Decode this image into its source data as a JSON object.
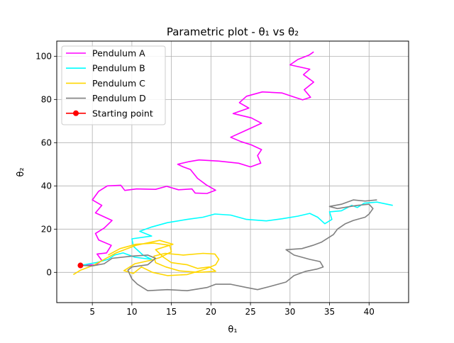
{
  "chart_data": {
    "type": "line",
    "title": "Parametric plot - θ₁ vs θ₂",
    "xlabel": "θ₁",
    "ylabel": "θ₂",
    "xlim": [
      0.5,
      45
    ],
    "ylim": [
      -14,
      107
    ],
    "xticks": [
      5,
      10,
      15,
      20,
      25,
      30,
      35,
      40
    ],
    "yticks": [
      0,
      20,
      40,
      60,
      80,
      100
    ],
    "grid": true,
    "legend_position": "top-left",
    "series": [
      {
        "name": "Pendulum A",
        "color": "#ff00ff",
        "points": [
          [
            3.5,
            3.2
          ],
          [
            5.5,
            3.5
          ],
          [
            6.2,
            5.5
          ],
          [
            5.6,
            8.5
          ],
          [
            6.8,
            9.0
          ],
          [
            7.4,
            12.5
          ],
          [
            5.8,
            15.0
          ],
          [
            5.4,
            18.0
          ],
          [
            6.5,
            20.5
          ],
          [
            7.5,
            24.0
          ],
          [
            5.4,
            27.5
          ],
          [
            6.2,
            31.0
          ],
          [
            5.0,
            33.5
          ],
          [
            5.8,
            37.5
          ],
          [
            6.9,
            40.0
          ],
          [
            8.6,
            40.3
          ],
          [
            9.1,
            37.9
          ],
          [
            10.6,
            38.6
          ],
          [
            13.0,
            38.4
          ],
          [
            14.4,
            39.8
          ],
          [
            15.9,
            38.2
          ],
          [
            17.6,
            38.6
          ],
          [
            18.0,
            36.7
          ],
          [
            19.5,
            36.5
          ],
          [
            20.6,
            38.0
          ],
          [
            19.4,
            40.5
          ],
          [
            18.3,
            43.5
          ],
          [
            17.4,
            47.6
          ],
          [
            16.5,
            48.8
          ],
          [
            15.8,
            50.0
          ],
          [
            17.3,
            51.3
          ],
          [
            18.5,
            52.0
          ],
          [
            21.0,
            51.5
          ],
          [
            23.5,
            50.5
          ],
          [
            25.0,
            48.8
          ],
          [
            26.3,
            50.5
          ],
          [
            25.9,
            54.0
          ],
          [
            26.4,
            56.8
          ],
          [
            25.1,
            59.0
          ],
          [
            23.8,
            60.5
          ],
          [
            22.5,
            62.5
          ],
          [
            24.0,
            65.0
          ],
          [
            26.4,
            69.0
          ],
          [
            25.1,
            71.5
          ],
          [
            22.8,
            73.5
          ],
          [
            24.8,
            76.0
          ],
          [
            23.6,
            78.5
          ],
          [
            24.5,
            81.5
          ],
          [
            26.5,
            83.5
          ],
          [
            29.0,
            83.0
          ],
          [
            30.6,
            81.0
          ],
          [
            31.6,
            79.8
          ],
          [
            32.6,
            81.0
          ],
          [
            31.8,
            84.5
          ],
          [
            33.0,
            88.0
          ],
          [
            31.7,
            91.5
          ],
          [
            32.5,
            94.0
          ],
          [
            30.0,
            96.0
          ],
          [
            31.0,
            98.5
          ],
          [
            32.4,
            100.5
          ],
          [
            33.0,
            102.0
          ]
        ]
      },
      {
        "name": "Pendulum B",
        "color": "#00ffff",
        "points": [
          [
            3.5,
            3.2
          ],
          [
            5.5,
            4.5
          ],
          [
            7.0,
            6.0
          ],
          [
            7.8,
            8.0
          ],
          [
            8.9,
            9.0
          ],
          [
            10.4,
            7.0
          ],
          [
            12.5,
            6.0
          ],
          [
            11.4,
            8.0
          ],
          [
            10.2,
            12.0
          ],
          [
            10.0,
            15.5
          ],
          [
            12.5,
            16.8
          ],
          [
            11.0,
            19.0
          ],
          [
            12.5,
            21.0
          ],
          [
            14.5,
            23.0
          ],
          [
            17.0,
            24.5
          ],
          [
            19.0,
            25.5
          ],
          [
            20.5,
            27.0
          ],
          [
            22.5,
            26.5
          ],
          [
            24.5,
            24.5
          ],
          [
            27.0,
            23.8
          ],
          [
            29.0,
            24.8
          ],
          [
            31.0,
            26.0
          ],
          [
            32.5,
            27.3
          ],
          [
            33.5,
            25.5
          ],
          [
            34.4,
            22.5
          ],
          [
            35.3,
            24.5
          ],
          [
            35.0,
            28.0
          ],
          [
            36.5,
            28.5
          ],
          [
            37.8,
            31.0
          ],
          [
            38.5,
            30.0
          ],
          [
            39.4,
            32.0
          ],
          [
            41.0,
            32.5
          ],
          [
            43.0,
            31.0
          ]
        ]
      },
      {
        "name": "Pendulum C",
        "color": "#ffd700",
        "points": [
          [
            2.6,
            -1.0
          ],
          [
            3.5,
            1.0
          ],
          [
            5.3,
            3.5
          ],
          [
            6.0,
            5.0
          ],
          [
            8.0,
            9.0
          ],
          [
            10.5,
            12.5
          ],
          [
            13.5,
            14.8
          ],
          [
            15.2,
            13.0
          ],
          [
            13.0,
            10.5
          ],
          [
            14.0,
            7.0
          ],
          [
            15.0,
            4.5
          ],
          [
            17.0,
            3.5
          ],
          [
            18.3,
            1.8
          ],
          [
            19.8,
            2.5
          ],
          [
            20.6,
            0.5
          ],
          [
            18.5,
            0.0
          ],
          [
            16.0,
            0.7
          ],
          [
            14.3,
            2.5
          ],
          [
            13.0,
            4.5
          ],
          [
            12.8,
            7.5
          ],
          [
            14.2,
            8.8
          ],
          [
            16.5,
            8.0
          ],
          [
            19.0,
            8.8
          ],
          [
            20.5,
            8.5
          ],
          [
            21.0,
            6.0
          ],
          [
            20.6,
            3.5
          ],
          [
            19.3,
            1.5
          ],
          [
            17.0,
            -1.0
          ],
          [
            14.5,
            -1.5
          ],
          [
            12.6,
            0.0
          ],
          [
            11.2,
            2.5
          ],
          [
            10.2,
            -0.5
          ],
          [
            9.0,
            0.8
          ],
          [
            10.4,
            4.0
          ],
          [
            12.3,
            5.5
          ],
          [
            13.5,
            6.8
          ],
          [
            15.0,
            9.5
          ],
          [
            14.8,
            12.5
          ],
          [
            12.8,
            13.5
          ],
          [
            10.5,
            13.0
          ],
          [
            8.5,
            11.0
          ],
          [
            7.0,
            8.0
          ]
        ]
      },
      {
        "name": "Pendulum D",
        "color": "#808080",
        "points": [
          [
            3.5,
            3.2
          ],
          [
            5.0,
            3.0
          ],
          [
            6.5,
            4.0
          ],
          [
            7.5,
            6.5
          ],
          [
            10.0,
            7.5
          ],
          [
            12.0,
            8.0
          ],
          [
            13.0,
            6.5
          ],
          [
            12.0,
            3.5
          ],
          [
            10.0,
            2.5
          ],
          [
            9.5,
            1.0
          ],
          [
            10.0,
            -3.0
          ],
          [
            10.7,
            -5.5
          ],
          [
            12.0,
            -8.5
          ],
          [
            14.5,
            -8.0
          ],
          [
            17.0,
            -8.5
          ],
          [
            19.5,
            -7.0
          ],
          [
            20.6,
            -5.5
          ],
          [
            22.5,
            -5.5
          ],
          [
            24.5,
            -7.0
          ],
          [
            25.9,
            -8.0
          ],
          [
            27.5,
            -6.5
          ],
          [
            29.5,
            -4.5
          ],
          [
            30.5,
            -1.5
          ],
          [
            32.0,
            0.5
          ],
          [
            33.4,
            1.5
          ],
          [
            34.2,
            2.5
          ],
          [
            33.8,
            5.0
          ],
          [
            32.5,
            6.0
          ],
          [
            30.5,
            8.0
          ],
          [
            29.5,
            10.5
          ],
          [
            31.5,
            11.0
          ],
          [
            32.9,
            12.5
          ],
          [
            34.0,
            14.0
          ],
          [
            35.5,
            17.5
          ],
          [
            36.0,
            20.0
          ],
          [
            37.0,
            22.5
          ],
          [
            38.0,
            24.0
          ],
          [
            39.5,
            25.5
          ],
          [
            40.0,
            27.0
          ],
          [
            40.5,
            29.5
          ],
          [
            40.0,
            31.5
          ],
          [
            38.5,
            31.0
          ],
          [
            36.0,
            29.5
          ],
          [
            35.0,
            30.5
          ],
          [
            36.5,
            31.5
          ],
          [
            38.0,
            33.5
          ],
          [
            39.5,
            33.0
          ],
          [
            41.0,
            33.5
          ]
        ]
      }
    ],
    "start_point": {
      "name": "Starting point",
      "color": "#ff0000",
      "x": 3.5,
      "y": 3.2
    }
  }
}
